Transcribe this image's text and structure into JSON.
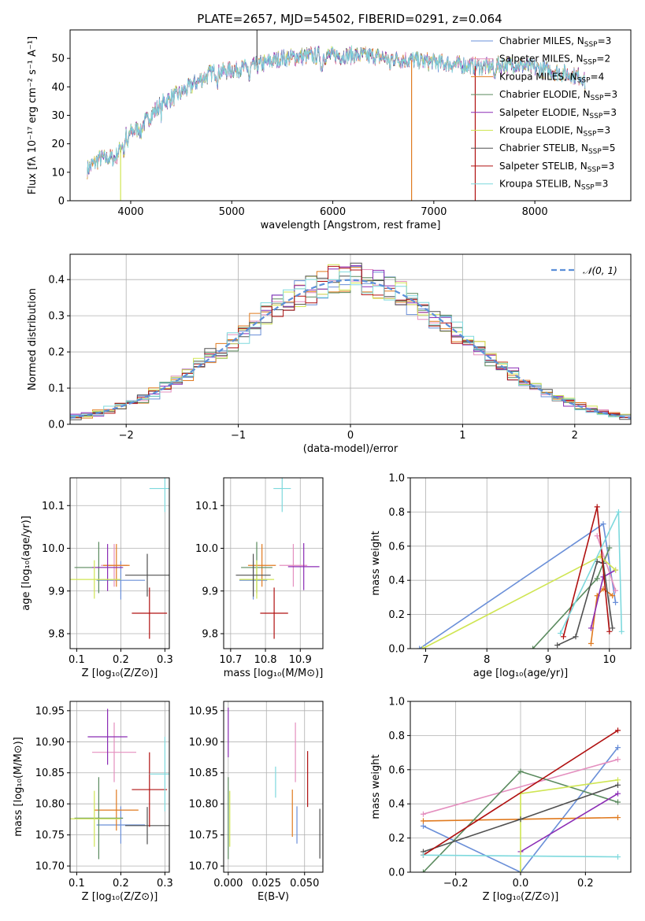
{
  "colors": {
    "Chabrier MILES": "#6a8fd8",
    "Salpeter MILES": "#e48fbf",
    "Kroupa MILES": "#e07a1f",
    "Chabrier ELODIE": "#5a8a5e",
    "Salpeter ELODIE": "#8b2cb5",
    "Kroupa ELODIE": "#cfe552",
    "Chabrier STELIB": "#505050",
    "Salpeter STELIB": "#b01010",
    "Kroupa STELIB": "#7ed9dd"
  },
  "title": "PLATE=2657, MJD=54502, FIBERID=0291, z=0.064",
  "chart_data": [
    {
      "id": "spectrum",
      "type": "line",
      "xlabel": "wavelength [Angstrom, rest frame]",
      "ylabel": "Flux [fλ 10⁻¹⁷ erg cm⁻² s⁻¹ A⁻¹]",
      "xlim": [
        3400,
        8950
      ],
      "ylim": [
        0,
        60
      ],
      "xticks": [
        4000,
        5000,
        6000,
        7000,
        8000
      ],
      "yticks": [
        0,
        10,
        20,
        30,
        40,
        50
      ],
      "grid": false,
      "legend": "upper right",
      "continuum": [
        [
          3570,
          11
        ],
        [
          3700,
          15
        ],
        [
          3850,
          15
        ],
        [
          3950,
          23
        ],
        [
          4100,
          26
        ],
        [
          4300,
          34
        ],
        [
          4500,
          38
        ],
        [
          4800,
          45
        ],
        [
          5000,
          46
        ],
        [
          5200,
          47
        ],
        [
          5500,
          50
        ],
        [
          5800,
          51
        ],
        [
          6000,
          51
        ],
        [
          6300,
          51
        ],
        [
          6600,
          50
        ],
        [
          6900,
          49
        ],
        [
          7200,
          48
        ],
        [
          7500,
          47
        ],
        [
          7800,
          48
        ],
        [
          8100,
          46
        ],
        [
          8400,
          44
        ],
        [
          8500,
          43
        ]
      ],
      "legend_entries": [
        {
          "label": "Chabrier MILES, N",
          "sub": "SSP",
          "suffix": "=3",
          "color_key": "Chabrier MILES"
        },
        {
          "label": "Salpeter MILES, N",
          "sub": "SSP",
          "suffix": "=2",
          "color_key": "Salpeter MILES"
        },
        {
          "label": "Kroupa MILES, N",
          "sub": "SSP",
          "suffix": "=4",
          "color_key": "Kroupa MILES"
        },
        {
          "label": "Chabrier ELODIE, N",
          "sub": "SSP",
          "suffix": "=3",
          "color_key": "Chabrier ELODIE"
        },
        {
          "label": "Salpeter ELODIE, N",
          "sub": "SSP",
          "suffix": "=3",
          "color_key": "Salpeter ELODIE"
        },
        {
          "label": "Kroupa ELODIE, N",
          "sub": "SSP",
          "suffix": "=3",
          "color_key": "Kroupa ELODIE"
        },
        {
          "label": "Chabrier STELIB, N",
          "sub": "SSP",
          "suffix": "=5",
          "color_key": "Chabrier STELIB"
        },
        {
          "label": "Salpeter STELIB, N",
          "sub": "SSP",
          "suffix": "=3",
          "color_key": "Salpeter STELIB"
        },
        {
          "label": "Kroupa STELIB, N",
          "sub": "SSP",
          "suffix": "=3",
          "color_key": "Kroupa STELIB"
        }
      ],
      "drops": [
        {
          "x": 3900,
          "y_to": 0,
          "color_key": "Kroupa ELODIE"
        },
        {
          "x": 5250,
          "y_to": 60,
          "color_key": "Chabrier STELIB"
        },
        {
          "x": 6780,
          "y_to": 0,
          "color_key": "Kroupa MILES"
        },
        {
          "x": 7410,
          "y_to": 0,
          "color_key": "Salpeter STELIB"
        }
      ]
    },
    {
      "id": "residuals",
      "type": "line",
      "xlabel": "(data-model)/error",
      "ylabel": "Normed distribution",
      "xlim": [
        -2.5,
        2.5
      ],
      "ylim": [
        0,
        0.47
      ],
      "xticks": [
        -2,
        -1,
        0,
        1,
        2
      ],
      "yticks": [
        0.0,
        0.1,
        0.2,
        0.3,
        0.4
      ],
      "grid": true,
      "legend": "upper right",
      "gauss_label": "𝒩(0, 1)",
      "gauss_color": "#5b8fd9"
    },
    {
      "id": "age-vs-Z",
      "type": "scatter",
      "xlabel": "Z [log₁₀(Z/Z⊙)]",
      "ylabel": "age  [log₁₀(age/yr)]",
      "xlim": [
        0.085,
        0.31
      ],
      "ylim": [
        9.765,
        10.165
      ],
      "xticks": [
        0.1,
        0.2,
        0.3
      ],
      "yticks": [
        9.8,
        9.9,
        10.0,
        10.1
      ],
      "grid": true,
      "points": [
        {
          "key": "Chabrier MILES",
          "x": 0.2,
          "xerr": 0.055,
          "y": 9.925,
          "yerr": 0.045
        },
        {
          "key": "Salpeter MILES",
          "x": 0.185,
          "xerr": 0.03,
          "y": 9.96,
          "yerr": 0.05
        },
        {
          "key": "Kroupa MILES",
          "x": 0.19,
          "xerr": 0.03,
          "y": 9.96,
          "yerr": 0.05
        },
        {
          "key": "Chabrier ELODIE",
          "x": 0.15,
          "xerr": 0.055,
          "y": 9.955,
          "yerr": 0.06
        },
        {
          "key": "Salpeter ELODIE",
          "x": 0.17,
          "xerr": 0.035,
          "y": 9.955,
          "yerr": 0.055
        },
        {
          "key": "Kroupa ELODIE",
          "x": 0.14,
          "xerr": 0.06,
          "y": 9.927,
          "yerr": 0.045
        },
        {
          "key": "Chabrier STELIB",
          "x": 0.26,
          "xerr": 0.05,
          "y": 9.937,
          "yerr": 0.05
        },
        {
          "key": "Salpeter STELIB",
          "x": 0.265,
          "xerr": 0.04,
          "y": 9.848,
          "yerr": 0.06
        },
        {
          "key": "Kroupa STELIB",
          "x": 0.3,
          "xerr": 0.035,
          "y": 10.14,
          "yerr": 0.055
        }
      ]
    },
    {
      "id": "age-vs-mass",
      "type": "scatter",
      "xlabel": "mass [log₁₀(M/M⊙)]",
      "xlim": [
        10.68,
        10.965
      ],
      "ylim": [
        9.765,
        10.165
      ],
      "xticks": [
        10.7,
        10.8,
        10.9
      ],
      "yticks": [
        9.8,
        9.9,
        10.0,
        10.1
      ],
      "grid": true,
      "points": [
        {
          "key": "Chabrier MILES",
          "x": 10.765,
          "xerr": 0.04,
          "y": 9.925,
          "yerr": 0.045
        },
        {
          "key": "Salpeter MILES",
          "x": 10.88,
          "xerr": 0.04,
          "y": 9.96,
          "yerr": 0.05
        },
        {
          "key": "Kroupa MILES",
          "x": 10.79,
          "xerr": 0.04,
          "y": 9.96,
          "yerr": 0.05
        },
        {
          "key": "Chabrier ELODIE",
          "x": 10.775,
          "xerr": 0.045,
          "y": 9.955,
          "yerr": 0.06
        },
        {
          "key": "Salpeter ELODIE",
          "x": 10.91,
          "xerr": 0.045,
          "y": 9.957,
          "yerr": 0.055
        },
        {
          "key": "Kroupa ELODIE",
          "x": 10.775,
          "xerr": 0.05,
          "y": 9.927,
          "yerr": 0.045
        },
        {
          "key": "Chabrier STELIB",
          "x": 10.765,
          "xerr": 0.05,
          "y": 9.937,
          "yerr": 0.05
        },
        {
          "key": "Salpeter STELIB",
          "x": 10.825,
          "xerr": 0.04,
          "y": 9.848,
          "yerr": 0.06
        },
        {
          "key": "Kroupa STELIB",
          "x": 10.848,
          "xerr": 0.025,
          "y": 10.14,
          "yerr": 0.055
        }
      ]
    },
    {
      "id": "weight-vs-age",
      "type": "line",
      "xlabel": "age  [log₁₀(age/yr)]",
      "ylabel": "mass weight",
      "xlim": [
        6.75,
        10.35
      ],
      "ylim": [
        0,
        1.0
      ],
      "xticks": [
        7,
        8,
        9,
        10
      ],
      "yticks": [
        0.0,
        0.2,
        0.4,
        0.6,
        0.8,
        1.0
      ],
      "grid": true,
      "series": [
        {
          "key": "Chabrier MILES",
          "points": [
            [
              6.9,
              0.0
            ],
            [
              9.9,
              0.73
            ],
            [
              10.1,
              0.27
            ]
          ]
        },
        {
          "key": "Salpeter MILES",
          "points": [
            [
              9.8,
              0.66
            ],
            [
              10.1,
              0.34
            ]
          ]
        },
        {
          "key": "Kroupa MILES",
          "points": [
            [
              9.7,
              0.03
            ],
            [
              9.8,
              0.31
            ],
            [
              9.9,
              0.35
            ],
            [
              10.05,
              0.31
            ]
          ]
        },
        {
          "key": "Chabrier ELODIE",
          "points": [
            [
              8.75,
              0.0
            ],
            [
              9.8,
              0.41
            ],
            [
              10.0,
              0.59
            ]
          ]
        },
        {
          "key": "Salpeter ELODIE",
          "points": [
            [
              9.7,
              0.12
            ],
            [
              9.9,
              0.42
            ],
            [
              10.1,
              0.46
            ]
          ]
        },
        {
          "key": "Kroupa ELODIE",
          "points": [
            [
              6.95,
              0.0
            ],
            [
              9.85,
              0.54
            ],
            [
              10.1,
              0.46
            ]
          ]
        },
        {
          "key": "Chabrier STELIB",
          "points": [
            [
              9.15,
              0.02
            ],
            [
              9.45,
              0.07
            ],
            [
              9.8,
              0.51
            ],
            [
              9.9,
              0.5
            ],
            [
              10.05,
              0.12
            ]
          ]
        },
        {
          "key": "Salpeter STELIB",
          "points": [
            [
              9.25,
              0.07
            ],
            [
              9.8,
              0.83
            ],
            [
              10.0,
              0.1
            ]
          ]
        },
        {
          "key": "Kroupa STELIB",
          "points": [
            [
              9.2,
              0.09
            ],
            [
              10.15,
              0.8
            ],
            [
              10.2,
              0.1
            ]
          ]
        }
      ]
    },
    {
      "id": "mass-vs-Z",
      "type": "scatter",
      "xlabel": "Z [log₁₀(Z/Z⊙)]",
      "ylabel": "mass [log₁₀(M/M⊙)]",
      "xlim": [
        0.085,
        0.31
      ],
      "ylim": [
        10.69,
        10.965
      ],
      "xticks": [
        0.1,
        0.2,
        0.3
      ],
      "yticks": [
        10.7,
        10.75,
        10.8,
        10.85,
        10.9,
        10.95
      ],
      "grid": true,
      "points": [
        {
          "key": "Chabrier MILES",
          "x": 0.2,
          "xerr": 0.055,
          "y": 10.766,
          "yerr": 0.03
        },
        {
          "key": "Salpeter MILES",
          "x": 0.185,
          "xerr": 0.05,
          "y": 10.883,
          "yerr": 0.048
        },
        {
          "key": "Kroupa MILES",
          "x": 0.19,
          "xerr": 0.05,
          "y": 10.79,
          "yerr": 0.033
        },
        {
          "key": "Chabrier ELODIE",
          "x": 0.15,
          "xerr": 0.055,
          "y": 10.777,
          "yerr": 0.066
        },
        {
          "key": "Salpeter ELODIE",
          "x": 0.17,
          "xerr": 0.045,
          "y": 10.908,
          "yerr": 0.045
        },
        {
          "key": "Kroupa ELODIE",
          "x": 0.14,
          "xerr": 0.06,
          "y": 10.776,
          "yerr": 0.045
        },
        {
          "key": "Chabrier STELIB",
          "x": 0.26,
          "xerr": 0.05,
          "y": 10.765,
          "yerr": 0.03
        },
        {
          "key": "Salpeter STELIB",
          "x": 0.265,
          "xerr": 0.04,
          "y": 10.823,
          "yerr": 0.06
        },
        {
          "key": "Kroupa STELIB",
          "x": 0.3,
          "xerr": 0.035,
          "y": 10.848,
          "yerr": 0.06
        }
      ]
    },
    {
      "id": "mass-vs-EBV",
      "type": "scatter",
      "xlabel": "E(B-V)",
      "xlim": [
        -0.003,
        0.062
      ],
      "ylim": [
        10.69,
        10.965
      ],
      "xticks": [
        0.0,
        0.025,
        0.05
      ],
      "yticks": [
        10.7,
        10.75,
        10.8,
        10.85,
        10.9,
        10.95
      ],
      "grid": true,
      "points": [
        {
          "key": "Chabrier MILES",
          "x": 0.045,
          "xerr": 0,
          "y": 10.766,
          "yerr": 0.03
        },
        {
          "key": "Salpeter MILES",
          "x": 0.044,
          "xerr": 0,
          "y": 10.883,
          "yerr": 0.048
        },
        {
          "key": "Kroupa MILES",
          "x": 0.042,
          "xerr": 0,
          "y": 10.785,
          "yerr": 0.038
        },
        {
          "key": "Chabrier ELODIE",
          "x": 0.0,
          "xerr": 0,
          "y": 10.777,
          "yerr": 0.066
        },
        {
          "key": "Salpeter ELODIE",
          "x": 0.0,
          "xerr": 0,
          "y": 10.915,
          "yerr": 0.04
        },
        {
          "key": "Kroupa ELODIE",
          "x": 0.001,
          "xerr": 0,
          "y": 10.776,
          "yerr": 0.045
        },
        {
          "key": "Chabrier STELIB",
          "x": 0.06,
          "xerr": 0,
          "y": 10.752,
          "yerr": 0.04
        },
        {
          "key": "Salpeter STELIB",
          "x": 0.052,
          "xerr": 0,
          "y": 10.84,
          "yerr": 0.045
        },
        {
          "key": "Kroupa STELIB",
          "x": 0.031,
          "xerr": 0,
          "y": 10.835,
          "yerr": 0.025
        }
      ]
    },
    {
      "id": "weight-vs-Z",
      "type": "line",
      "xlabel": "Z [log₁₀(Z/Z⊙)]",
      "ylabel": "mass weight",
      "xlim": [
        -0.34,
        0.34
      ],
      "ylim": [
        0,
        1.0
      ],
      "xticks": [
        -0.2,
        0.0,
        0.2
      ],
      "yticks": [
        0.0,
        0.2,
        0.4,
        0.6,
        0.8,
        1.0
      ],
      "grid": true,
      "series": [
        {
          "key": "Chabrier MILES",
          "points": [
            [
              -0.3,
              0.27
            ],
            [
              0.0,
              0.0
            ],
            [
              0.3,
              0.73
            ]
          ]
        },
        {
          "key": "Salpeter MILES",
          "points": [
            [
              -0.3,
              0.34
            ],
            [
              0.3,
              0.66
            ]
          ]
        },
        {
          "key": "Kroupa MILES",
          "points": [
            [
              -0.3,
              0.3
            ],
            [
              0.3,
              0.32
            ]
          ]
        },
        {
          "key": "Chabrier ELODIE",
          "points": [
            [
              -0.3,
              0.0
            ],
            [
              0.0,
              0.59
            ],
            [
              0.3,
              0.41
            ]
          ]
        },
        {
          "key": "Salpeter ELODIE",
          "points": [
            [
              0.0,
              0.12
            ],
            [
              0.3,
              0.46
            ]
          ]
        },
        {
          "key": "Kroupa ELODIE",
          "points": [
            [
              0.0,
              0.0
            ],
            [
              0.0,
              0.46
            ],
            [
              0.3,
              0.54
            ]
          ]
        },
        {
          "key": "Chabrier STELIB",
          "points": [
            [
              -0.3,
              0.12
            ],
            [
              0.0,
              0.31
            ],
            [
              0.3,
              0.51
            ]
          ]
        },
        {
          "key": "Salpeter STELIB",
          "points": [
            [
              -0.3,
              0.1
            ],
            [
              0.3,
              0.83
            ]
          ]
        },
        {
          "key": "Kroupa STELIB",
          "points": [
            [
              -0.3,
              0.1
            ],
            [
              0.3,
              0.09
            ]
          ]
        }
      ]
    }
  ]
}
